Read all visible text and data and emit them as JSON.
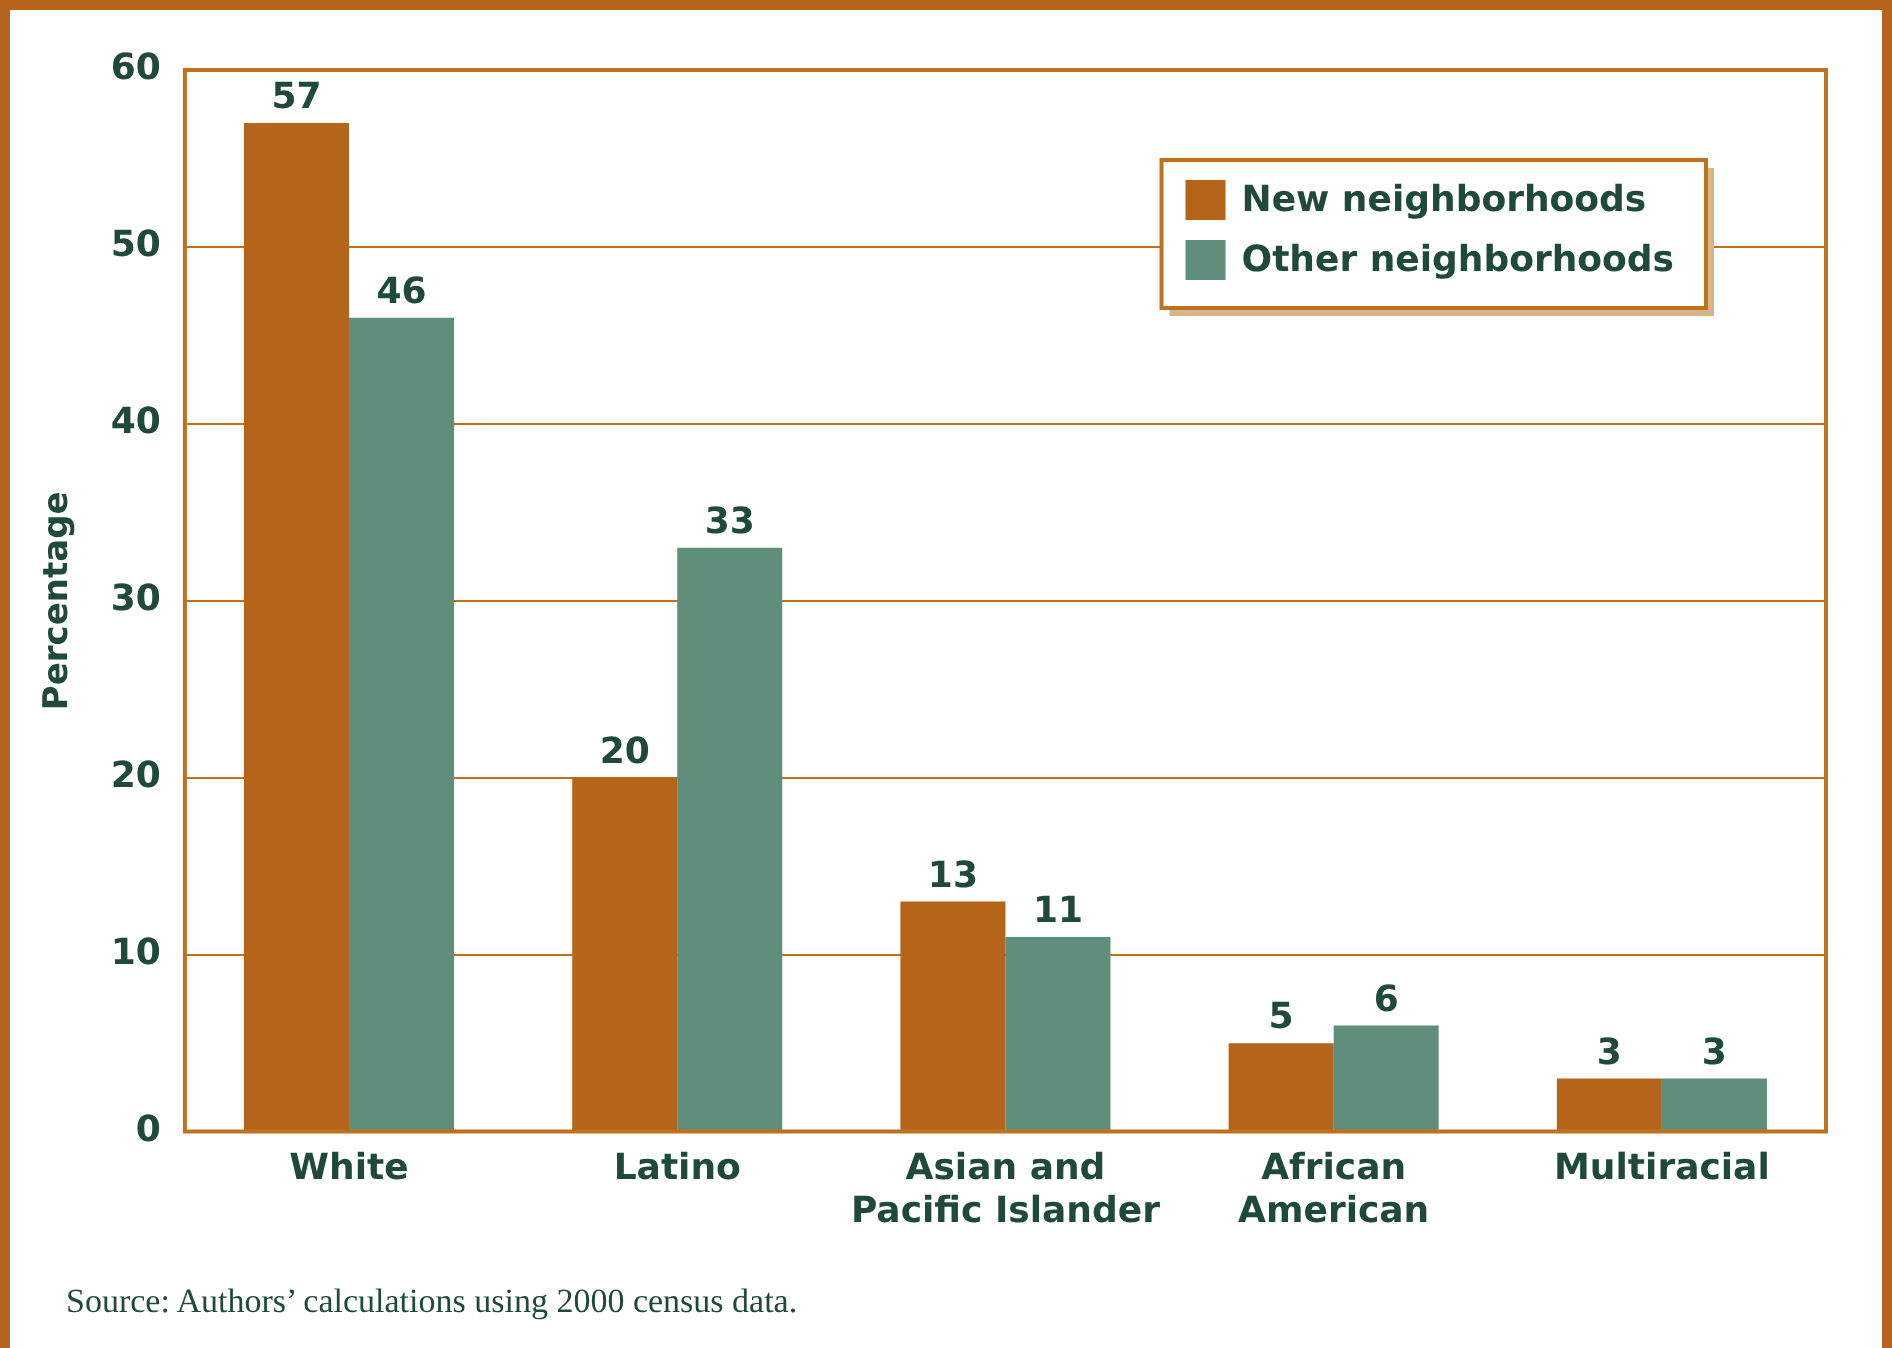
{
  "chart_data": {
    "type": "bar",
    "ylabel": "Percentage",
    "categories": [
      "White",
      "Latino",
      "Asian and Pacific Islander",
      "African American",
      "Multiracial"
    ],
    "series": [
      {
        "name": "New neighborhoods",
        "color": "#b5651a",
        "values": [
          57,
          20,
          13,
          5,
          3
        ]
      },
      {
        "name": "Other neighborhoods",
        "color": "#5f8f7b",
        "values": [
          46,
          33,
          11,
          6,
          3
        ]
      }
    ],
    "ylim": [
      0,
      60
    ],
    "yticks": [
      0,
      10,
      20,
      30,
      40,
      50,
      60
    ],
    "grid": "y",
    "legend": "top right",
    "data_labels": true,
    "annotations": [
      "Source: Authors’ calculations using 2000 census data."
    ]
  }
}
